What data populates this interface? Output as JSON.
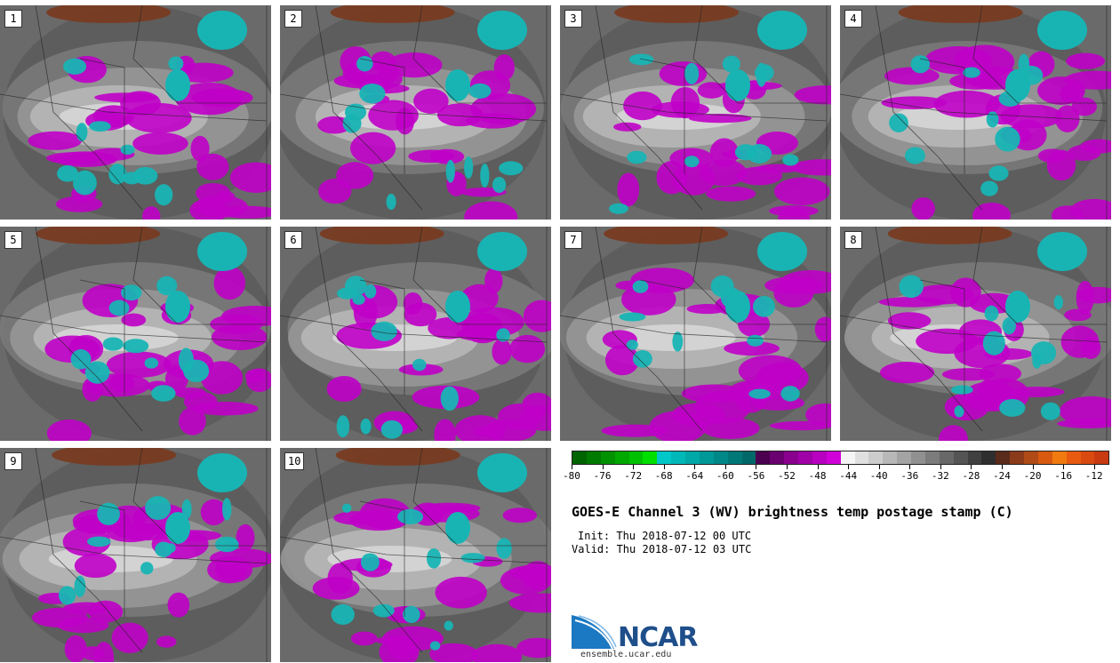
{
  "panels": [
    {
      "label": "1"
    },
    {
      "label": "2"
    },
    {
      "label": "3"
    },
    {
      "label": "4"
    },
    {
      "label": "5"
    },
    {
      "label": "6"
    },
    {
      "label": "7"
    },
    {
      "label": "8"
    },
    {
      "label": "9"
    },
    {
      "label": "10"
    }
  ],
  "colorbar": {
    "colors": [
      "#006400",
      "#007a00",
      "#009100",
      "#00a800",
      "#00c000",
      "#00e000",
      "#00c8c8",
      "#00b8b8",
      "#00a8a8",
      "#009898",
      "#008888",
      "#007878",
      "#006868",
      "#4b0050",
      "#6a006f",
      "#8a008f",
      "#a000a8",
      "#b800c0",
      "#d000d8",
      "#f5f5f5",
      "#e0e0e0",
      "#cccccc",
      "#b8b8b8",
      "#a4a4a4",
      "#909090",
      "#7c7c7c",
      "#686868",
      "#545454",
      "#404040",
      "#2e2e2e",
      "#5a2a1a",
      "#8b3a1a",
      "#b04a16",
      "#d85a10",
      "#f07a10",
      "#e85a10",
      "#d84a10",
      "#c83a10"
    ],
    "min": -80,
    "max": -10,
    "tick_labels": [
      "-80",
      "-76",
      "-72",
      "-68",
      "-64",
      "-60",
      "-56",
      "-52",
      "-48",
      "-44",
      "-40",
      "-36",
      "-32",
      "-28",
      "-24",
      "-20",
      "-16",
      "-12"
    ]
  },
  "title": "GOES-E Channel 3 (WV) brightness temp postage stamp (C)",
  "init": "Init: Thu 2018-07-12 00 UTC",
  "valid": "Valid: Thu 2018-07-12 03 UTC",
  "logo": {
    "name": "NCAR",
    "url": "ensemble.ucar.edu"
  }
}
